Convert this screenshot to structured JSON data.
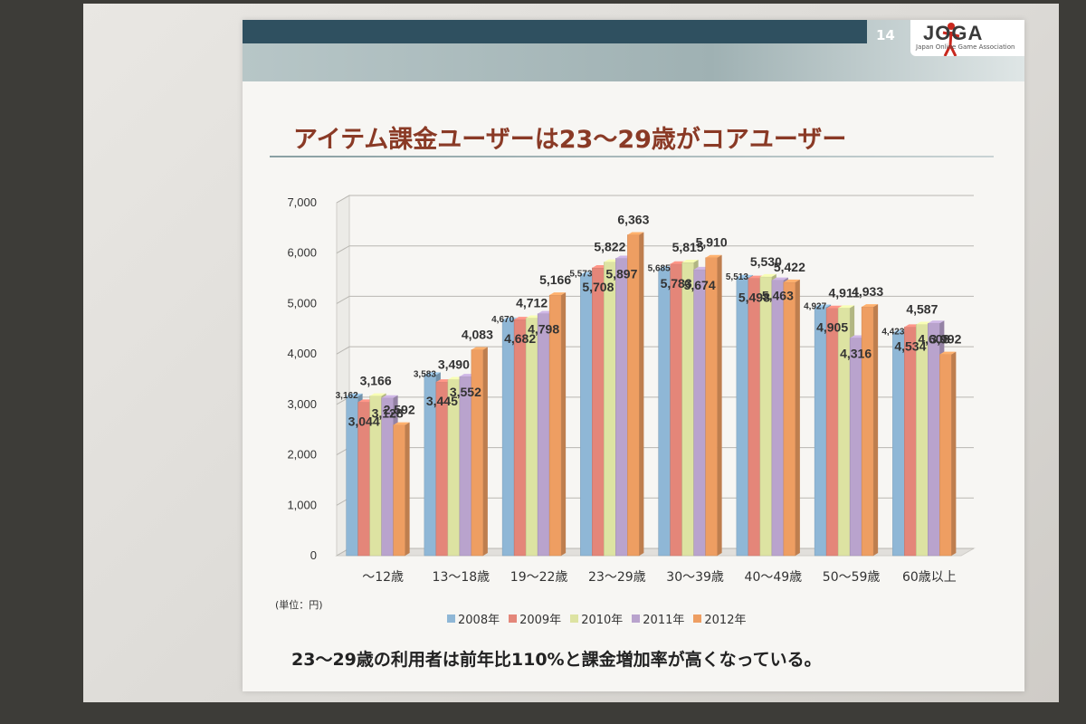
{
  "slide": {
    "number": "14",
    "logo_text": "JOGA",
    "logo_subtitle": "Japan Online Game Association",
    "title": "アイテム課金ユーザーは23～29歳がコアユーザー",
    "unit_note": "(単位：円)",
    "footnote": "23～29歳の利用者は前年比110%と課金増加率が高くなっている。"
  },
  "chart_data": {
    "type": "bar",
    "title": "",
    "xlabel": "",
    "ylabel": "",
    "ylim": [
      0,
      7000
    ],
    "yticks": [
      0,
      1000,
      2000,
      3000,
      4000,
      5000,
      6000,
      7000
    ],
    "ytick_labels": [
      "0",
      "1,000",
      "2,000",
      "3,000",
      "4,000",
      "5,000",
      "6,000",
      "7,000"
    ],
    "grid": true,
    "legend_position": "bottom",
    "categories": [
      "～12歳",
      "13～18歳",
      "19～22歳",
      "23～29歳",
      "30～39歳",
      "40～49歳",
      "50～59歳",
      "60歳以上"
    ],
    "series": [
      {
        "name": "2008年",
        "color": "#8fb7d6",
        "values": [
          3162,
          3583,
          4670,
          5573,
          5685,
          5513,
          4927,
          4423
        ],
        "labels": [
          "3,162",
          "3,583",
          "4,670",
          "5,573",
          "5,685",
          "5,513",
          "4,927",
          "4,423"
        ]
      },
      {
        "name": "2009年",
        "color": "#e48679",
        "values": [
          3044,
          3445,
          4682,
          5708,
          5783,
          5498,
          4905,
          4534
        ],
        "labels": [
          "3,044",
          "3,445",
          "4,682",
          "5,708",
          "5,783",
          "5,498",
          "4,905",
          "4,534"
        ]
      },
      {
        "name": "2010年",
        "color": "#dde3a2",
        "values": [
          3166,
          3490,
          4712,
          5822,
          5815,
          5530,
          4911,
          4587
        ],
        "labels": [
          "3,166",
          "3,490",
          "4,712",
          "5,822",
          "5,815",
          "5,530",
          "4,911",
          "4,587"
        ]
      },
      {
        "name": "2011年",
        "color": "#b9a3cd",
        "values": [
          3128,
          3552,
          4798,
          5897,
          5674,
          5463,
          4316,
          4608
        ],
        "labels": [
          "3,128",
          "3,552",
          "4,798",
          "5,897",
          "5,674",
          "5,463",
          "4,316",
          "4,608"
        ]
      },
      {
        "name": "2012年",
        "color": "#ee9e62",
        "values": [
          2592,
          4083,
          5166,
          6363,
          5910,
          5422,
          4933,
          3992
        ],
        "labels": [
          "2,592",
          "4,083",
          "5,166",
          "6,363",
          "5,910",
          "5,422",
          "4,933",
          "3,992"
        ]
      }
    ]
  }
}
